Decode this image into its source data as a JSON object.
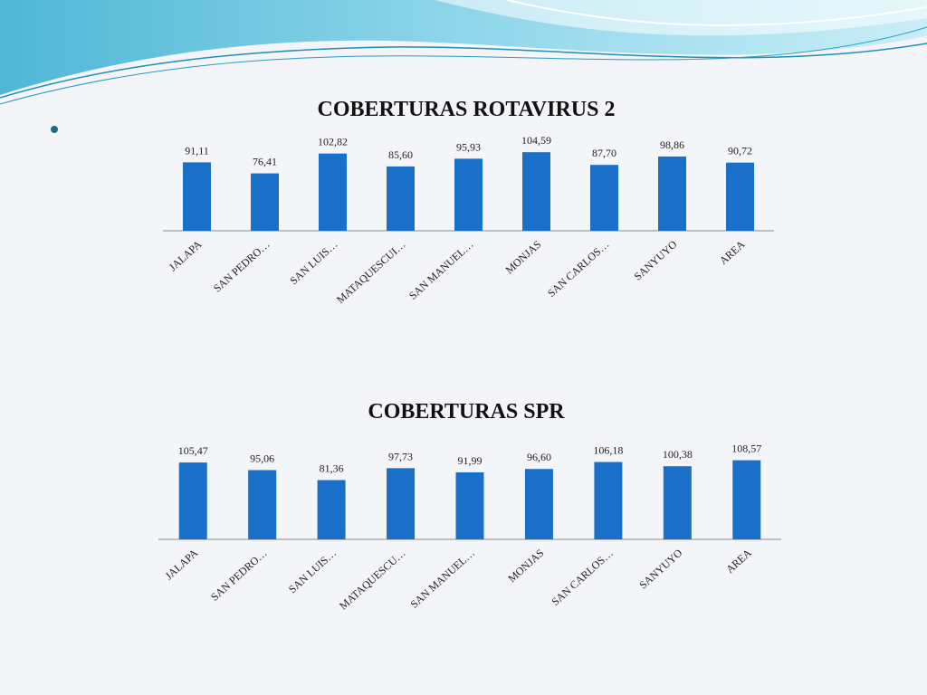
{
  "colors": {
    "bar": "#1a70c8",
    "axis": "#8a8a8a",
    "header_wave_light": "#bfe9f1",
    "header_wave_mid": "#59c3dc",
    "header_wave_dark": "#1f8fb8"
  },
  "chart_data": [
    {
      "type": "bar",
      "title": "COBERTURAS ROTAVIRUS 2",
      "categories": [
        "JALAPA",
        "SAN PEDRO…",
        "SAN LUIS…",
        "MATAQUESCUI…",
        "SAN MANUEL…",
        "MONJAS",
        "SAN CARLOS…",
        "SANYUYO",
        "AREA"
      ],
      "values": [
        91.11,
        76.41,
        102.82,
        85.6,
        95.93,
        104.59,
        87.7,
        98.86,
        90.72
      ],
      "value_labels": [
        "91,11",
        "76,41",
        "102,82",
        "85,60",
        "95,93",
        "104,59",
        "87,70",
        "98,86",
        "90,72"
      ],
      "ylim": [
        0,
        110
      ],
      "grid": false,
      "legend": "none"
    },
    {
      "type": "bar",
      "title": "COBERTURAS SPR",
      "categories": [
        "JALAPA",
        "SAN PEDRO…",
        "SAN LUIS…",
        "MATAQUESCU…",
        "SAN MANUEL…",
        "MONJAS",
        "SAN CARLOS…",
        "SANYUYO",
        "AREA"
      ],
      "values": [
        105.47,
        95.06,
        81.36,
        97.73,
        91.99,
        96.6,
        106.18,
        100.38,
        108.57
      ],
      "value_labels": [
        "105,47",
        "95,06",
        "81,36",
        "97,73",
        "91,99",
        "96,60",
        "106,18",
        "100,38",
        "108,57"
      ],
      "ylim": [
        0,
        110
      ],
      "grid": false,
      "legend": "none"
    }
  ]
}
